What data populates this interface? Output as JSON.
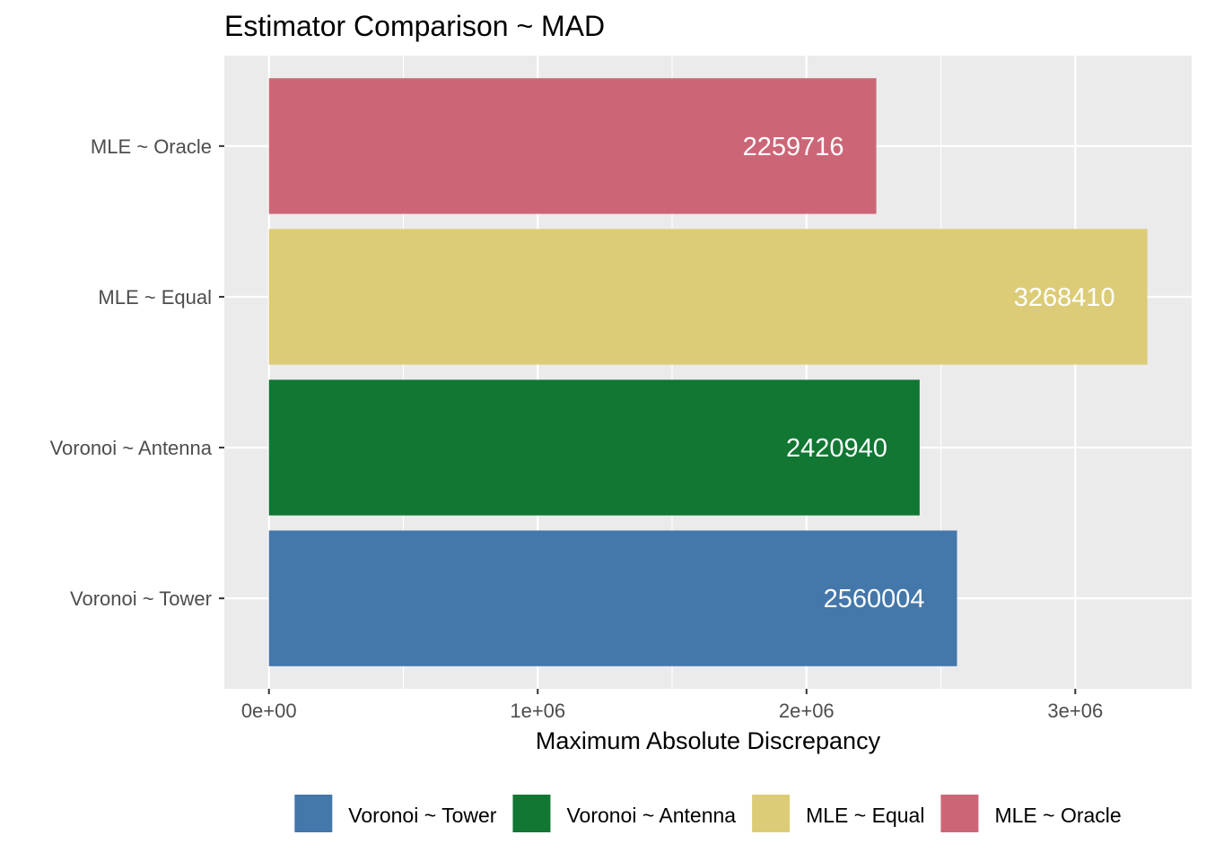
{
  "chart_data": {
    "type": "bar",
    "orientation": "horizontal",
    "title": "Estimator Comparison ~ MAD",
    "xlabel": "Maximum Absolute Discrepancy",
    "ylabel": "",
    "categories": [
      "Voronoi ~ Tower",
      "Voronoi ~ Antenna",
      "MLE ~ Equal",
      "MLE ~ Oracle"
    ],
    "values": [
      2560004,
      2420940,
      3268410,
      2259716
    ],
    "value_labels": [
      "2560004",
      "2420940",
      "3268410",
      "2259716"
    ],
    "colors": [
      "#4477aa",
      "#117733",
      "#ddcc77",
      "#cc6677"
    ],
    "xlim": [
      -166000,
      3433000
    ],
    "x_ticks": [
      0,
      1000000,
      2000000,
      3000000
    ],
    "x_tick_labels": [
      "0e+00",
      "1e+06",
      "2e+06",
      "3e+06"
    ],
    "x_minor_ticks": [
      500000,
      1500000,
      2500000
    ],
    "grid": true,
    "panel_background": "#ebebeb",
    "legend": {
      "position": "bottom",
      "entries": [
        "Voronoi ~ Tower",
        "Voronoi ~ Antenna",
        "MLE ~ Equal",
        "MLE ~ Oracle"
      ]
    }
  }
}
